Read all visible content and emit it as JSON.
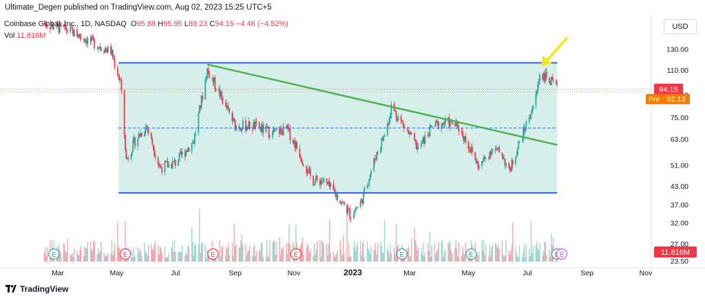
{
  "header": {
    "published": "Ultimate_Degen published on TradingView.com, Aug 02, 2023 15:25 UTC+5"
  },
  "legend": {
    "symbol": "Coinbase Global, Inc., 1D, NASDAQ",
    "o_label": "O",
    "o": "95.88",
    "h_label": "H",
    "h": "95.95",
    "l_label": "L",
    "l": "89.23",
    "c_label": "C",
    "c": "94.15",
    "change": "−4.46 (−4.52%)",
    "vol_label": "Vol",
    "vol": "11.616M"
  },
  "currency": "USD",
  "footer": {
    "brand": "TradingView"
  },
  "colors": {
    "up": "#26a69a",
    "down": "#f23645",
    "channel_line": "#2962ff",
    "channel_fill": "#cfece6",
    "trendline": "#4caf50",
    "midline": "#2962ff",
    "arrow": "#f5e625",
    "pre_badge": "#f57c00",
    "earnings_past": "#f23645",
    "earnings_future": "#e040fb",
    "earnings_div": "#26a69a"
  },
  "chart_data": {
    "type": "candlestick",
    "title": "Coinbase Global, Inc., 1D, NASDAQ",
    "y_scale": "log",
    "ylim": [
      23.5,
      155
    ],
    "y_ticks": [
      "130.00",
      "110.00",
      "90.00",
      "75.00",
      "63.00",
      "51.00",
      "43.00",
      "37.00",
      "32.00",
      "27.00",
      "23.50"
    ],
    "y_tick_values": [
      130,
      110,
      90,
      75,
      63,
      51,
      43,
      37,
      32,
      27,
      23.5
    ],
    "x_ticks": [
      "Mar",
      "May",
      "Jul",
      "Sep",
      "Nov",
      "2023",
      "Mar",
      "May",
      "Jul",
      "Sep",
      "Nov"
    ],
    "x_tick_dates": [
      "2022-03-01",
      "2022-05-01",
      "2022-07-01",
      "2022-09-01",
      "2022-11-01",
      "2023-01-01",
      "2023-03-01",
      "2023-05-01",
      "2023-07-01",
      "2023-09-01",
      "2023-11-01"
    ],
    "grid": false,
    "last_price": {
      "label": "94.15",
      "value": 94.15
    },
    "pre_market": {
      "label": "Pre",
      "price": "92.13",
      "value": 92.13
    },
    "volume_label": "11.616M",
    "price_anchors": [
      {
        "date": "2022-02-15",
        "close": 160
      },
      {
        "date": "2022-03-15",
        "close": 150
      },
      {
        "date": "2022-04-01",
        "close": 140
      },
      {
        "date": "2022-04-25",
        "close": 128
      },
      {
        "date": "2022-05-05",
        "close": 100
      },
      {
        "date": "2022-05-11",
        "close": 53
      },
      {
        "date": "2022-05-20",
        "close": 62
      },
      {
        "date": "2022-06-01",
        "close": 70
      },
      {
        "date": "2022-06-15",
        "close": 50
      },
      {
        "date": "2022-07-01",
        "close": 52
      },
      {
        "date": "2022-07-20",
        "close": 62
      },
      {
        "date": "2022-08-03",
        "close": 110
      },
      {
        "date": "2022-08-15",
        "close": 92
      },
      {
        "date": "2022-09-01",
        "close": 70
      },
      {
        "date": "2022-09-20",
        "close": 70
      },
      {
        "date": "2022-10-10",
        "close": 66
      },
      {
        "date": "2022-10-25",
        "close": 68
      },
      {
        "date": "2022-11-05",
        "close": 58
      },
      {
        "date": "2022-11-20",
        "close": 45
      },
      {
        "date": "2022-12-01",
        "close": 45
      },
      {
        "date": "2022-12-15",
        "close": 40
      },
      {
        "date": "2022-12-30",
        "close": 34
      },
      {
        "date": "2023-01-10",
        "close": 38
      },
      {
        "date": "2023-01-25",
        "close": 55
      },
      {
        "date": "2023-02-05",
        "close": 68
      },
      {
        "date": "2023-02-10",
        "close": 82
      },
      {
        "date": "2023-02-25",
        "close": 68
      },
      {
        "date": "2023-03-10",
        "close": 58
      },
      {
        "date": "2023-03-25",
        "close": 70
      },
      {
        "date": "2023-04-10",
        "close": 72
      },
      {
        "date": "2023-04-20",
        "close": 70
      },
      {
        "date": "2023-05-01",
        "close": 60
      },
      {
        "date": "2023-05-12",
        "close": 50
      },
      {
        "date": "2023-05-25",
        "close": 58
      },
      {
        "date": "2023-06-05",
        "close": 56
      },
      {
        "date": "2023-06-12",
        "close": 48
      },
      {
        "date": "2023-06-22",
        "close": 60
      },
      {
        "date": "2023-07-01",
        "close": 72
      },
      {
        "date": "2023-07-10",
        "close": 88
      },
      {
        "date": "2023-07-14",
        "close": 107
      },
      {
        "date": "2023-07-22",
        "close": 103
      },
      {
        "date": "2023-08-01",
        "close": 94.15
      }
    ],
    "annotations": [
      {
        "type": "horizontal_line",
        "name": "channel-top",
        "value": 116.5,
        "from": "2022-05-03",
        "to": "2023-08-01"
      },
      {
        "type": "horizontal_line",
        "name": "channel-bottom",
        "value": 40.7,
        "from": "2022-05-03",
        "to": "2023-08-01"
      },
      {
        "type": "dashed_line",
        "name": "channel-mid",
        "value": 68.8,
        "from": "2022-05-03",
        "to": "2023-08-01"
      },
      {
        "type": "trendline",
        "name": "descending-trendline",
        "start": {
          "date": "2022-08-03",
          "value": 115
        },
        "end": {
          "date": "2023-08-01",
          "value": 60
        }
      },
      {
        "type": "arrow",
        "name": "breakout-arrow",
        "points_to": {
          "date": "2023-07-14",
          "value": 112
        }
      }
    ],
    "events": [
      {
        "kind": "dividend",
        "label": "E",
        "date": "2022-02-25"
      },
      {
        "kind": "earnings",
        "label": "E",
        "date": "2022-05-10"
      },
      {
        "kind": "earnings",
        "label": "E",
        "date": "2022-08-09"
      },
      {
        "kind": "earnings",
        "label": "E",
        "date": "2022-11-03"
      },
      {
        "kind": "dividend",
        "label": "E",
        "date": "2023-02-21"
      },
      {
        "kind": "dividend",
        "label": "E",
        "date": "2023-05-04"
      },
      {
        "kind": "dividend",
        "label": "E",
        "date": "2023-08-03"
      },
      {
        "kind": "upcoming",
        "label": "E",
        "date": "2023-08-03"
      }
    ]
  }
}
